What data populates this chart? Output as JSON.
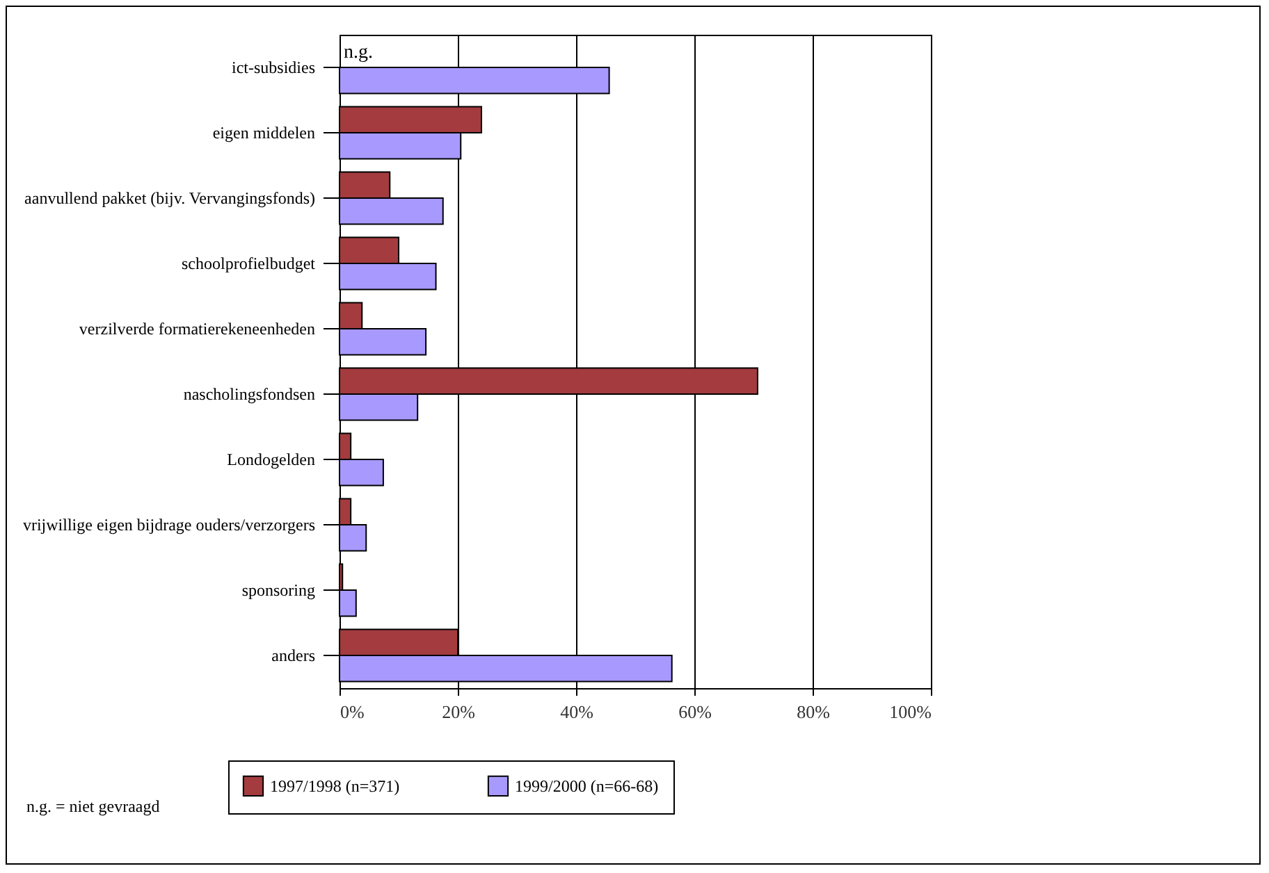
{
  "chart_data": {
    "type": "bar",
    "orientation": "horizontal",
    "categories": [
      "ict-subsidies",
      "eigen middelen",
      "aanvullend pakket (bijv. Vervangingsfonds)",
      "schoolprofielbudget",
      "verzilverde formatierekeneenheden",
      "nascholingsfondsen",
      "Londogelden",
      "vrijwillige eigen bijdrage ouders/verzorgers",
      "sponsoring",
      "anders"
    ],
    "series": [
      {
        "name": "1997/1998 (n=371)",
        "color": "#a33b3f",
        "values": [
          null,
          24,
          8.5,
          10,
          3.8,
          70.7,
          1.9,
          1.9,
          0.5,
          20
        ]
      },
      {
        "name": "1999/2000 (n=66-68)",
        "color": "#a899ff",
        "values": [
          45.6,
          20.5,
          17.5,
          16.3,
          14.6,
          13.2,
          7.4,
          4.5,
          2.8,
          56.2
        ]
      }
    ],
    "xlim": [
      0,
      100
    ],
    "xticks": [
      {
        "value": 0,
        "label": "0%"
      },
      {
        "value": 20,
        "label": "20%"
      },
      {
        "value": 40,
        "label": "40%"
      },
      {
        "value": 60,
        "label": "60%"
      },
      {
        "value": 80,
        "label": "80%"
      },
      {
        "value": 100,
        "label": "100%"
      }
    ],
    "grid": "x",
    "legend": "bottom",
    "annotations": [
      {
        "text": "n.g.",
        "x": 0,
        "y": "ict-subsidies"
      },
      "n.g. = niet gevraagd"
    ]
  }
}
